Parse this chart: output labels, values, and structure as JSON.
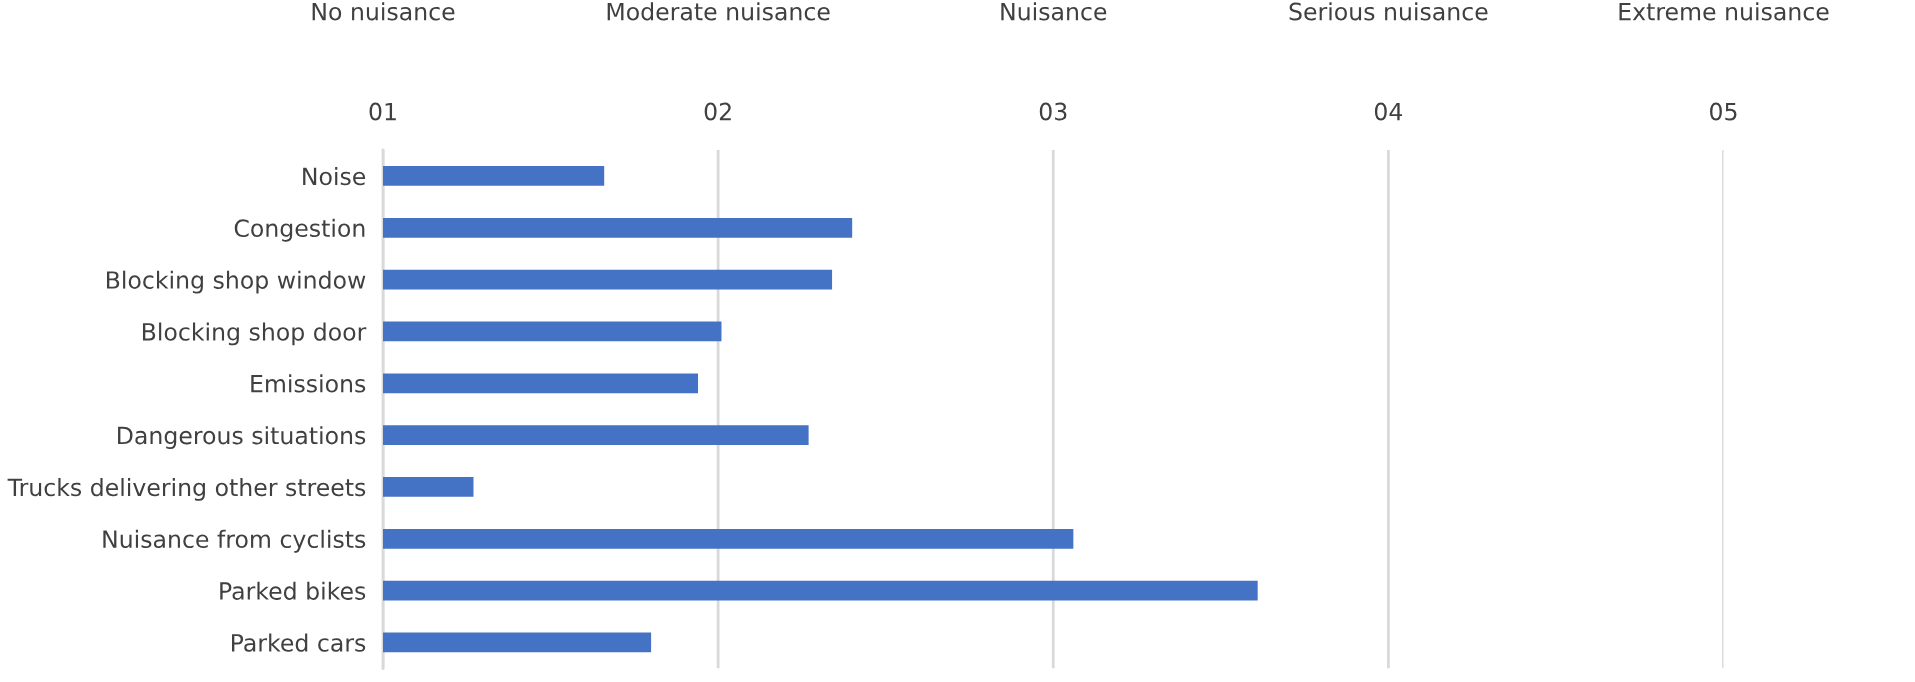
{
  "chart_data": {
    "type": "bar",
    "orientation": "horizontal",
    "categories": [
      "Noise",
      "Congestion",
      "Blocking shop window",
      "Blocking shop door",
      "Emissions",
      "Dangerous situations",
      "Trucks delivering other streets",
      "Nuisance from cyclists",
      "Parked bikes",
      "Parked cars"
    ],
    "values": [
      0.66,
      1.4,
      1.34,
      1.01,
      0.94,
      1.27,
      0.27,
      2.06,
      2.61,
      0.8
    ],
    "base": [
      1,
      1,
      1,
      1,
      1,
      1,
      1,
      1,
      1,
      1
    ],
    "color": "#4472c4",
    "xlim": [
      1,
      5
    ],
    "xticks": [
      {
        "value": 1,
        "label": "01"
      },
      {
        "value": 2,
        "label": "02"
      },
      {
        "value": 3,
        "label": "03"
      },
      {
        "value": 4,
        "label": "04"
      },
      {
        "value": 5,
        "label": "05"
      }
    ],
    "annotations": [
      "No nuisance",
      "Moderate nuisance",
      "Nuisance",
      "Serious nuisance",
      "Extreme nuisance"
    ],
    "grid": "x",
    "legend": false
  }
}
